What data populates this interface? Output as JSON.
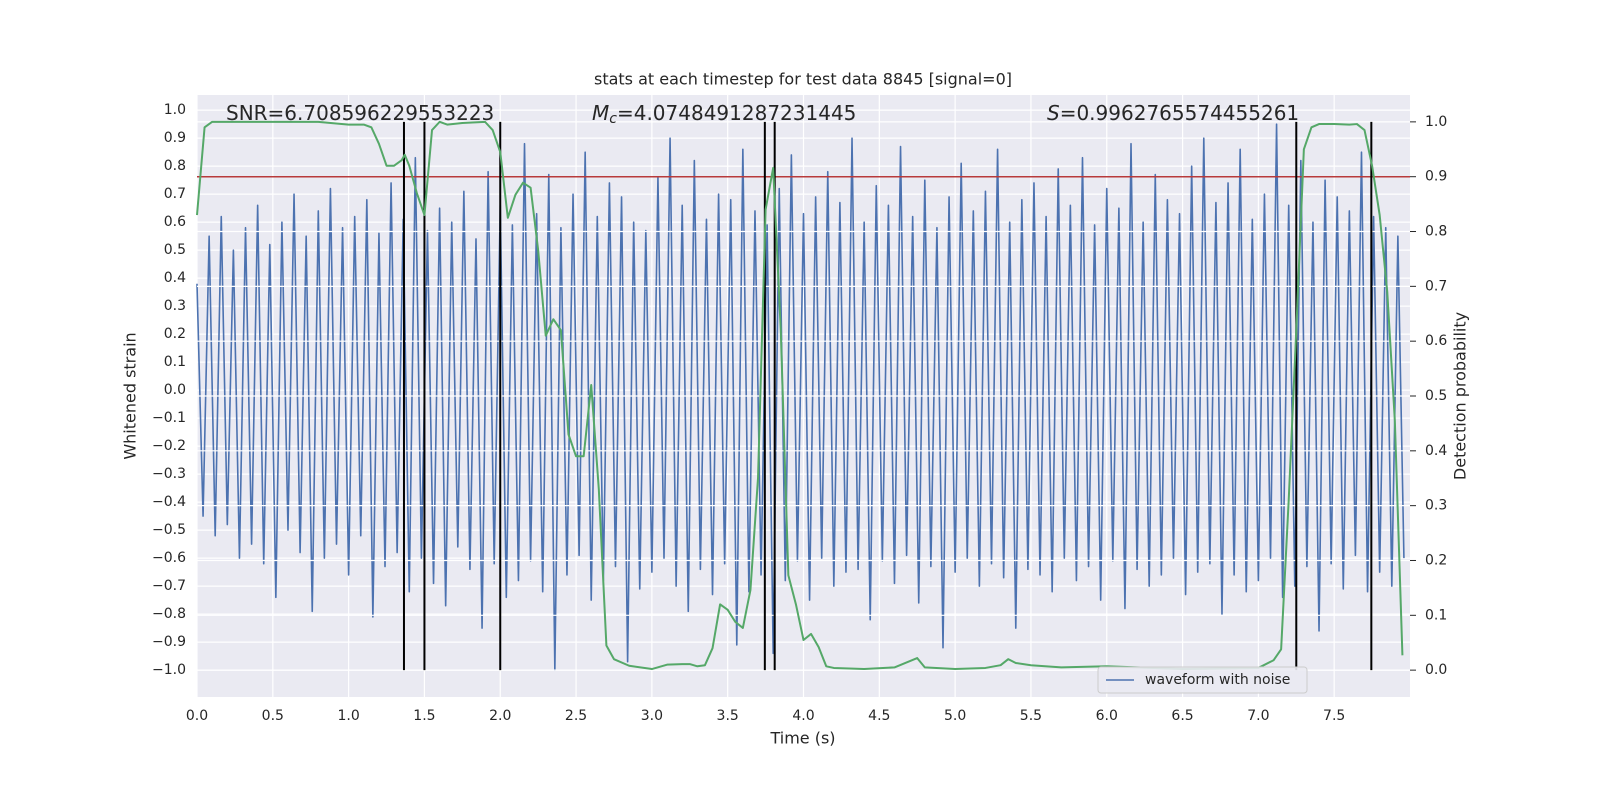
{
  "chart_data": {
    "type": "line",
    "title": "stats at each timestep for test data 8845 [signal=0]",
    "xlabel": "Time (s)",
    "ylabel": "Whitened strain",
    "y2label": "Detection probability",
    "annotations": [
      {
        "text": "SNR=6.708596229553223"
      },
      {
        "symbol": "M",
        "subscript": "c",
        "text": "=4.0748491287231445"
      },
      {
        "symbol": "S",
        "text": "=0.9962765574455261"
      }
    ],
    "xlim": [
      0,
      8
    ],
    "xticks": [
      {
        "value": 0,
        "label": "0.0"
      },
      0.5,
      {
        "value": 1,
        "label": "1.0"
      },
      1.5,
      {
        "value": 2,
        "label": "2.0"
      },
      2.5,
      {
        "value": 3,
        "label": "3.0"
      },
      3.5,
      {
        "value": 4,
        "label": "4.0"
      },
      4.5,
      {
        "value": 5,
        "label": "5.0"
      },
      5.5,
      {
        "value": 6,
        "label": "6.0"
      },
      6.5,
      {
        "value": 7,
        "label": "7.0"
      },
      7.5
    ],
    "ylim": [
      -1.096,
      1.054
    ],
    "yticks": [
      {
        "value": -1,
        "label": "−1.0"
      },
      {
        "value": -0.9,
        "label": "−0.9"
      },
      {
        "value": -0.8,
        "label": "−0.8"
      },
      {
        "value": -0.7,
        "label": "−0.7"
      },
      {
        "value": -0.6,
        "label": "−0.6"
      },
      {
        "value": -0.5,
        "label": "−0.5"
      },
      {
        "value": -0.4,
        "label": "−0.4"
      },
      {
        "value": -0.3,
        "label": "−0.3"
      },
      {
        "value": -0.2,
        "label": "−0.2"
      },
      {
        "value": -0.1,
        "label": "−0.1"
      },
      {
        "value": 0,
        "label": "0.0"
      },
      0.1,
      0.2,
      0.3,
      0.4,
      0.5,
      0.6,
      0.7,
      0.8,
      0.9,
      {
        "value": 1,
        "label": "1.0"
      }
    ],
    "y2lim": [
      -0.049,
      1.049
    ],
    "y2ticks": [
      {
        "value": 0,
        "label": "0.0"
      },
      0.1,
      0.2,
      0.3,
      0.4,
      0.5,
      0.6,
      0.7,
      0.8,
      0.9,
      {
        "value": 1,
        "label": "1.0"
      }
    ],
    "grid": true,
    "legend": "lower right",
    "series": [
      {
        "name": "waveform with noise",
        "color": "#4c72b0",
        "x": [
          0,
          0.04,
          0.08,
          0.12,
          0.16,
          0.2,
          0.24,
          0.28,
          0.32,
          0.36,
          0.4,
          0.44,
          0.48,
          0.52,
          0.56,
          0.6,
          0.64,
          0.68,
          0.72,
          0.76,
          0.8,
          0.84,
          0.88,
          0.92,
          0.96,
          1,
          1.04,
          1.08,
          1.12,
          1.16,
          1.2,
          1.24,
          1.28,
          1.32,
          1.36,
          1.4,
          1.44,
          1.48,
          1.52,
          1.56,
          1.6,
          1.64,
          1.68,
          1.72,
          1.76,
          1.8,
          1.84,
          1.88,
          1.92,
          1.96,
          2,
          2.04,
          2.08,
          2.12,
          2.16,
          2.2,
          2.24,
          2.28,
          2.32,
          2.36,
          2.4,
          2.44,
          2.48,
          2.52,
          2.56,
          2.6,
          2.64,
          2.68,
          2.72,
          2.76,
          2.8,
          2.84,
          2.88,
          2.92,
          2.96,
          3,
          3.04,
          3.08,
          3.12,
          3.16,
          3.2,
          3.24,
          3.28,
          3.32,
          3.36,
          3.4,
          3.44,
          3.48,
          3.52,
          3.56,
          3.6,
          3.64,
          3.68,
          3.72,
          3.76,
          3.8,
          3.84,
          3.88,
          3.92,
          3.96,
          4,
          4.04,
          4.08,
          4.12,
          4.16,
          4.2,
          4.24,
          4.28,
          4.32,
          4.36,
          4.4,
          4.44,
          4.48,
          4.52,
          4.56,
          4.6,
          4.64,
          4.68,
          4.72,
          4.76,
          4.8,
          4.84,
          4.88,
          4.92,
          4.96,
          5,
          5.04,
          5.08,
          5.12,
          5.16,
          5.2,
          5.24,
          5.28,
          5.32,
          5.36,
          5.4,
          5.44,
          5.48,
          5.52,
          5.56,
          5.6,
          5.64,
          5.68,
          5.72,
          5.76,
          5.8,
          5.84,
          5.88,
          5.92,
          5.96,
          6,
          6.04,
          6.08,
          6.12,
          6.16,
          6.2,
          6.24,
          6.28,
          6.32,
          6.36,
          6.4,
          6.44,
          6.48,
          6.52,
          6.56,
          6.6,
          6.64,
          6.68,
          6.72,
          6.76,
          6.8,
          6.84,
          6.88,
          6.92,
          6.96,
          7,
          7.04,
          7.08,
          7.12,
          7.16,
          7.2,
          7.24,
          7.28,
          7.32,
          7.36,
          7.4,
          7.44,
          7.48,
          7.52,
          7.56,
          7.6,
          7.64,
          7.68,
          7.72,
          7.76,
          7.8,
          7.84,
          7.88,
          7.92,
          7.96
        ],
        "values": [
          0.38,
          -0.45,
          0.55,
          -0.52,
          0.62,
          -0.48,
          0.5,
          -0.6,
          0.58,
          -0.55,
          0.66,
          -0.62,
          0.52,
          -0.74,
          0.6,
          -0.5,
          0.7,
          -0.58,
          0.55,
          -0.79,
          0.64,
          -0.6,
          0.72,
          -0.55,
          0.58,
          -0.66,
          0.62,
          -0.52,
          0.68,
          -0.81,
          0.56,
          -0.63,
          0.74,
          -0.58,
          0.61,
          -0.72,
          0.83,
          -0.6,
          0.57,
          -0.69,
          0.65,
          -0.77,
          0.6,
          -0.56,
          0.71,
          -0.64,
          0.54,
          -0.85,
          0.78,
          -0.62,
          0.66,
          -0.74,
          0.59,
          -0.68,
          0.88,
          -0.61,
          0.63,
          -0.72,
          0.77,
          -1.0,
          0.58,
          -0.66,
          0.7,
          -0.59,
          0.85,
          -0.75,
          0.62,
          -0.68,
          0.74,
          -0.63,
          0.69,
          -0.97,
          0.6,
          -0.71,
          0.57,
          -0.65,
          0.76,
          -0.6,
          0.9,
          -0.7,
          0.66,
          -0.79,
          0.82,
          -0.64,
          0.61,
          -0.73,
          0.7,
          -0.62,
          0.68,
          -0.91,
          0.86,
          -0.72,
          0.64,
          -0.66,
          0.59,
          -0.94,
          0.72,
          -0.68,
          0.84,
          -0.61,
          0.63,
          -0.75,
          0.69,
          -0.6,
          0.78,
          -0.7,
          0.67,
          -0.65,
          0.9,
          -0.64,
          0.6,
          -0.82,
          0.73,
          -0.61,
          0.66,
          -0.69,
          0.87,
          -0.59,
          0.62,
          -0.76,
          0.75,
          -0.63,
          0.58,
          -0.92,
          0.69,
          -0.65,
          0.81,
          -0.6,
          0.64,
          -0.7,
          0.71,
          -0.62,
          0.86,
          -0.67,
          0.6,
          -0.85,
          0.68,
          -0.64,
          0.74,
          -0.66,
          0.62,
          -0.72,
          0.79,
          -0.6,
          0.66,
          -0.68,
          0.83,
          -0.63,
          0.59,
          -0.75,
          0.72,
          -0.61,
          0.65,
          -0.78,
          0.88,
          -0.64,
          0.6,
          -0.7,
          0.77,
          -0.66,
          0.68,
          -0.6,
          0.63,
          -0.73,
          0.8,
          -0.65,
          0.9,
          -0.62,
          0.67,
          -0.8,
          0.74,
          -0.66,
          0.86,
          -0.72,
          0.61,
          -0.68,
          0.7,
          -0.6,
          0.95,
          -0.74,
          0.66,
          -0.7,
          0.82,
          -0.63,
          0.6,
          -0.86,
          0.75,
          -0.62,
          0.69,
          -0.71,
          0.64,
          -0.59,
          0.85,
          -0.72,
          0.62,
          -0.65,
          0.58,
          -0.7,
          0.55,
          -0.6
        ]
      },
      {
        "color": "#55a868",
        "axis": "y2",
        "x": [
          0,
          0.05,
          0.1,
          0.2,
          0.4,
          0.6,
          0.8,
          1.0,
          1.1,
          1.15,
          1.2,
          1.25,
          1.3,
          1.35,
          1.37,
          1.4,
          1.45,
          1.5,
          1.55,
          1.6,
          1.65,
          1.75,
          1.9,
          1.95,
          2.0,
          2.05,
          2.1,
          2.15,
          2.2,
          2.25,
          2.3,
          2.35,
          2.4,
          2.45,
          2.5,
          2.55,
          2.6,
          2.65,
          2.7,
          2.75,
          2.85,
          3.0,
          3.1,
          3.2,
          3.25,
          3.3,
          3.35,
          3.4,
          3.45,
          3.5,
          3.55,
          3.6,
          3.65,
          3.7,
          3.75,
          3.8,
          3.85,
          3.9,
          3.95,
          4.0,
          4.05,
          4.1,
          4.15,
          4.2,
          4.4,
          4.6,
          4.75,
          4.8,
          5.0,
          5.2,
          5.3,
          5.35,
          5.4,
          5.5,
          5.7,
          6.0,
          6.5,
          7.0,
          7.1,
          7.15,
          7.2,
          7.25,
          7.3,
          7.35,
          7.4,
          7.5,
          7.6,
          7.65,
          7.7,
          7.75,
          7.8,
          7.85,
          7.9,
          7.95
        ],
        "values": [
          0.83,
          0.99,
          1.0,
          1.0,
          1.0,
          1.0,
          1.0,
          0.995,
          0.995,
          0.99,
          0.96,
          0.92,
          0.92,
          0.93,
          0.94,
          0.92,
          0.87,
          0.83,
          0.985,
          1.0,
          0.995,
          0.998,
          1.0,
          0.985,
          0.945,
          0.825,
          0.867,
          0.889,
          0.88,
          0.766,
          0.61,
          0.64,
          0.62,
          0.43,
          0.39,
          0.39,
          0.52,
          0.33,
          0.045,
          0.02,
          0.008,
          0.002,
          0.01,
          0.011,
          0.011,
          0.007,
          0.009,
          0.04,
          0.12,
          0.11,
          0.088,
          0.077,
          0.146,
          0.35,
          0.84,
          0.916,
          0.62,
          0.173,
          0.12,
          0.055,
          0.066,
          0.042,
          0.007,
          0.004,
          0.002,
          0.005,
          0.022,
          0.005,
          0.002,
          0.004,
          0.009,
          0.02,
          0.013,
          0.009,
          0.005,
          0.007,
          0.002,
          0.004,
          0.018,
          0.038,
          0.31,
          0.62,
          0.95,
          0.99,
          0.996,
          0.996,
          0.995,
          0.996,
          0.985,
          0.92,
          0.83,
          0.69,
          0.455,
          0.027
        ]
      }
    ],
    "threshold": 0.9,
    "threshold_color": "#b83a3b",
    "vlines": [
      1.365,
      1.5,
      2.0,
      3.745,
      3.81,
      7.25,
      7.745
    ],
    "vline_color": "#000000"
  }
}
